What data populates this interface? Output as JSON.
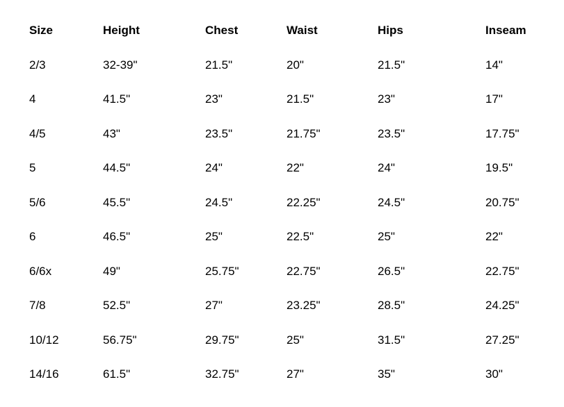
{
  "size_chart": {
    "columns": [
      "Size",
      "Height",
      "Chest",
      "Waist",
      "Hips",
      "Inseam"
    ],
    "rows": [
      [
        "2/3",
        "32-39\"",
        "21.5\"",
        "20\"",
        "21.5\"",
        "14\""
      ],
      [
        "4",
        "41.5\"",
        "23\"",
        "21.5\"",
        "23\"",
        "17\""
      ],
      [
        "4/5",
        "43\"",
        "23.5\"",
        "21.75\"",
        "23.5\"",
        "17.75\""
      ],
      [
        "5",
        "44.5\"",
        "24\"",
        "22\"",
        "24\"",
        "19.5\""
      ],
      [
        "5/6",
        "45.5\"",
        "24.5\"",
        "22.25\"",
        "24.5\"",
        "20.75\""
      ],
      [
        "6",
        "46.5\"",
        "25\"",
        "22.5\"",
        "25\"",
        "22\""
      ],
      [
        "6/6x",
        "49\"",
        "25.75\"",
        "22.75\"",
        "26.5\"",
        "22.75\""
      ],
      [
        "7/8",
        "52.5\"",
        "27\"",
        "23.25\"",
        "28.5\"",
        "24.25\""
      ],
      [
        "10/12",
        "56.75\"",
        "29.75\"",
        "25\"",
        "31.5\"",
        "27.25\""
      ],
      [
        "14/16",
        "61.5\"",
        "32.75\"",
        "27\"",
        "35\"",
        "30\""
      ]
    ],
    "colors": {
      "text": "#000000",
      "background": "#ffffff"
    }
  }
}
